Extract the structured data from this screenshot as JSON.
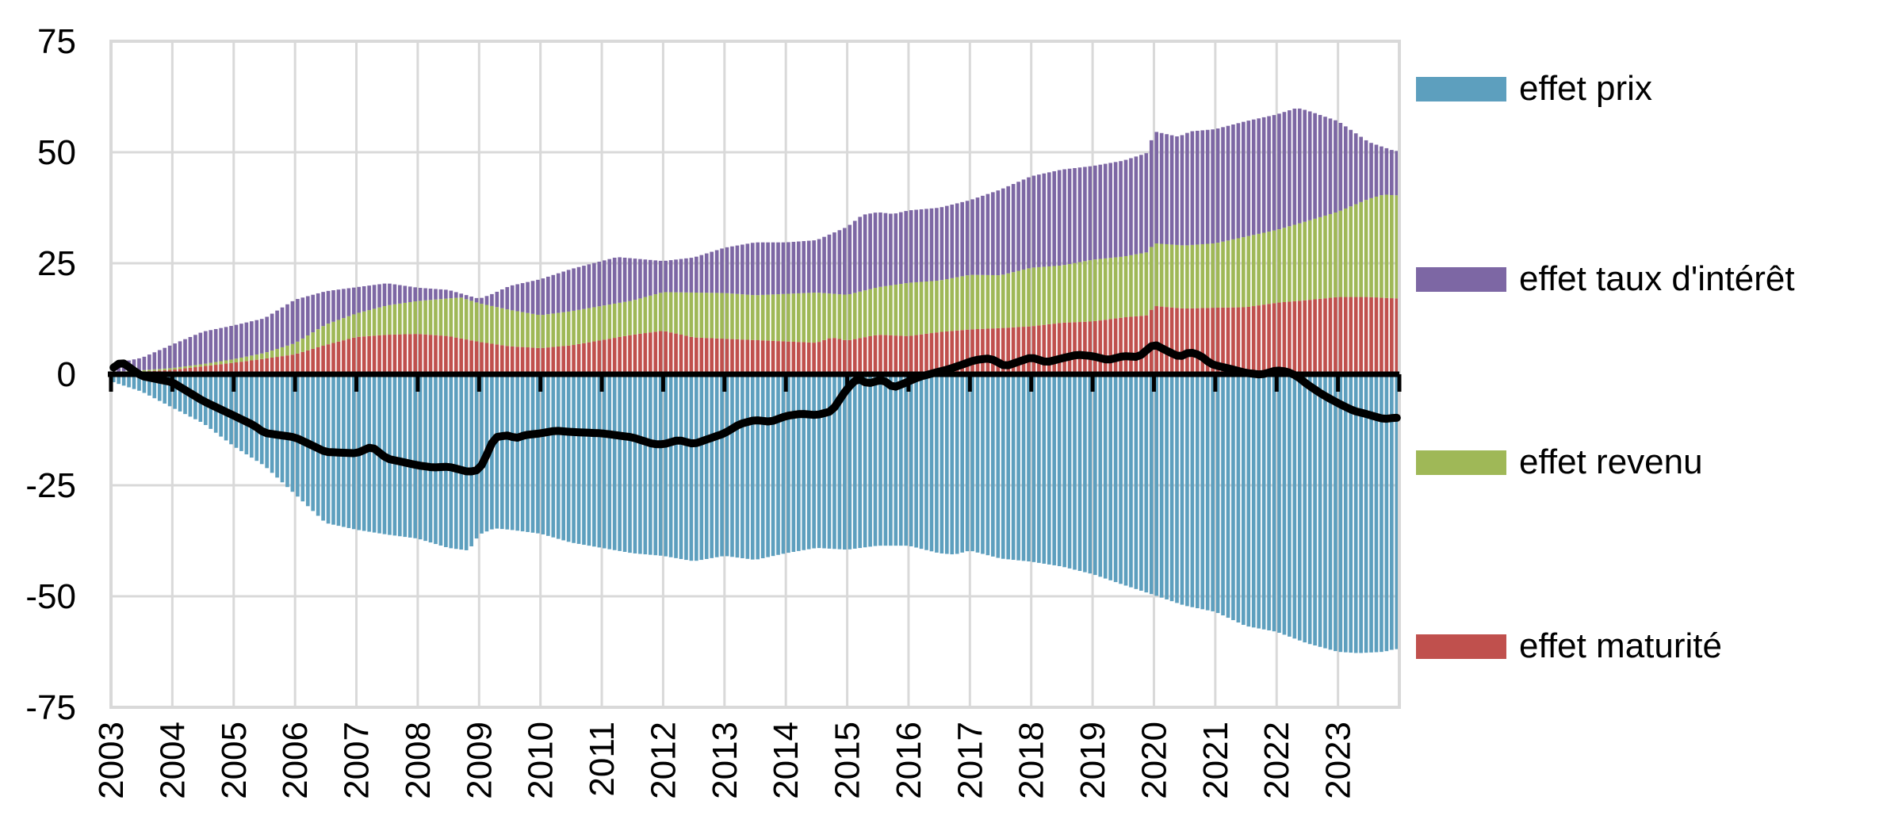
{
  "legend": [
    {
      "label": "effet prix",
      "color": "#5D9FBE",
      "series_key": "prix"
    },
    {
      "label": "effet taux d'intérêt",
      "color": "#7D67A4",
      "series_key": "taux"
    },
    {
      "label": "effet revenu",
      "color": "#9FB857",
      "series_key": "revenu"
    },
    {
      "label": "effet maturité",
      "color": "#C0504D",
      "series_key": "maturite"
    }
  ],
  "y_axis": {
    "ticks": [
      75,
      50,
      25,
      0,
      -25,
      -50,
      -75
    ],
    "min": -75,
    "max": 75
  },
  "x_axis": {
    "years": [
      2003,
      2004,
      2005,
      2006,
      2007,
      2008,
      2009,
      2010,
      2011,
      2012,
      2013,
      2014,
      2015,
      2016,
      2017,
      2018,
      2019,
      2020,
      2021,
      2022,
      2023
    ]
  },
  "style": {
    "grid_color": "#D9D9D9",
    "axis_color": "#000000",
    "line_color": "#000000",
    "background": "#FFFFFF"
  },
  "chart_data": {
    "type": "bar",
    "subtype": "monthly stacked bars (positive stack: maturité, revenu, taux d'intérêt; negative: prix) with black net line",
    "x_range": [
      2003,
      2024
    ],
    "x_resolution": "monthly 2003-01 to 2023-12 (252 bars)",
    "ylim": [
      -75,
      75
    ],
    "note": "anchor points read from chart; values are cumulative stack tops for positive series, negative values for prix, net balance for total",
    "series": [
      {
        "key": "maturite",
        "name": "effet maturité",
        "color": "#C0504D",
        "role": "bar-positive-cumulative-top",
        "anchors": {
          "x": [
            2003.0,
            2003.5,
            2004.0,
            2004.5,
            2005.0,
            2005.5,
            2006.0,
            2006.5,
            2007.0,
            2007.5,
            2008.0,
            2008.5,
            2009.0,
            2009.5,
            2010.0,
            2010.5,
            2011.0,
            2011.5,
            2012.0,
            2012.5,
            2013.0,
            2013.5,
            2014.0,
            2014.5,
            2014.75,
            2015.0,
            2015.5,
            2016.0,
            2016.5,
            2017.0,
            2017.5,
            2018.0,
            2018.5,
            2019.0,
            2019.5,
            2019.9,
            2020.0,
            2020.5,
            2021.0,
            2021.5,
            2022.0,
            2022.5,
            2023.0,
            2023.5,
            2023.92
          ],
          "v": [
            0.3,
            0.6,
            1.0,
            1.8,
            2.6,
            3.5,
            4.5,
            6.6,
            8.4,
            8.9,
            9.1,
            8.6,
            7.3,
            6.3,
            5.9,
            6.5,
            7.7,
            8.9,
            9.8,
            8.3,
            8.0,
            7.7,
            7.4,
            7.1,
            8.3,
            7.6,
            8.9,
            8.6,
            9.5,
            10.1,
            10.4,
            10.8,
            11.6,
            11.9,
            12.8,
            13.3,
            15.4,
            14.8,
            15.0,
            15.1,
            16.1,
            16.7,
            17.4,
            17.4,
            17.1
          ]
        }
      },
      {
        "key": "revenu",
        "name": "effet revenu",
        "color": "#9FB857",
        "role": "bar-positive-cumulative-top",
        "anchors": {
          "x": [
            2003.0,
            2003.5,
            2004.0,
            2004.5,
            2005.0,
            2005.5,
            2006.0,
            2006.5,
            2007.0,
            2007.5,
            2008.0,
            2008.7,
            2009.0,
            2009.5,
            2010.0,
            2010.5,
            2011.0,
            2011.5,
            2012.0,
            2012.5,
            2013.0,
            2013.5,
            2014.0,
            2014.5,
            2015.0,
            2015.5,
            2016.0,
            2016.5,
            2017.0,
            2017.5,
            2018.0,
            2018.5,
            2019.0,
            2019.5,
            2019.9,
            2020.0,
            2020.5,
            2021.0,
            2021.5,
            2022.0,
            2022.5,
            2023.0,
            2023.5,
            2023.75,
            2023.92
          ],
          "v": [
            0.5,
            0.9,
            1.4,
            2.3,
            3.4,
            4.8,
            7.0,
            11.2,
            13.7,
            15.5,
            16.5,
            17.3,
            16.0,
            14.5,
            13.3,
            14.2,
            15.4,
            16.6,
            18.5,
            18.4,
            18.3,
            17.8,
            18.1,
            18.4,
            17.9,
            19.6,
            20.6,
            21.1,
            22.4,
            22.3,
            24.0,
            24.5,
            25.8,
            26.5,
            27.5,
            29.5,
            29.0,
            29.5,
            31.0,
            32.5,
            34.5,
            36.6,
            39.5,
            40.5,
            40.3
          ]
        }
      },
      {
        "key": "taux",
        "name": "effet taux d'intérêt",
        "color": "#7D67A4",
        "role": "bar-positive-cumulative-top",
        "anchors": {
          "x": [
            2003.0,
            2003.5,
            2004.0,
            2004.5,
            2005.0,
            2005.5,
            2006.0,
            2006.5,
            2007.0,
            2007.5,
            2008.0,
            2008.5,
            2009.0,
            2009.2,
            2009.5,
            2010.0,
            2010.5,
            2011.0,
            2011.25,
            2011.5,
            2012.0,
            2012.5,
            2013.0,
            2013.5,
            2014.0,
            2014.5,
            2015.0,
            2015.25,
            2015.5,
            2015.75,
            2016.0,
            2016.5,
            2017.0,
            2017.5,
            2018.0,
            2018.5,
            2019.0,
            2019.5,
            2019.9,
            2020.0,
            2020.4,
            2020.6,
            2021.0,
            2021.5,
            2022.0,
            2022.33,
            2022.5,
            2023.0,
            2023.5,
            2023.92
          ],
          "v": [
            2.3,
            3.7,
            6.7,
            9.6,
            11.0,
            12.6,
            16.8,
            18.7,
            19.6,
            20.5,
            19.5,
            19.0,
            17.0,
            18.0,
            19.9,
            21.4,
            23.7,
            25.5,
            26.4,
            26.1,
            25.5,
            26.3,
            28.5,
            29.7,
            29.7,
            30.2,
            33.2,
            35.9,
            36.5,
            36.1,
            36.9,
            37.5,
            39.2,
            41.6,
            44.6,
            46.1,
            46.9,
            48.1,
            49.9,
            54.7,
            53.5,
            54.7,
            55.2,
            57.0,
            58.5,
            60.0,
            59.4,
            57.0,
            52.3,
            50.3
          ]
        }
      },
      {
        "key": "prix",
        "name": "effet prix",
        "color": "#5D9FBE",
        "role": "bar-negative",
        "anchors": {
          "x": [
            2003.0,
            2003.5,
            2004.0,
            2004.5,
            2005.0,
            2005.5,
            2006.0,
            2006.5,
            2007.0,
            2007.5,
            2008.0,
            2008.5,
            2008.83,
            2009.0,
            2009.25,
            2009.5,
            2010.0,
            2010.5,
            2011.0,
            2011.5,
            2012.0,
            2012.5,
            2013.0,
            2013.5,
            2014.0,
            2014.5,
            2015.0,
            2015.5,
            2016.0,
            2016.5,
            2016.75,
            2017.0,
            2017.5,
            2018.0,
            2018.5,
            2019.0,
            2019.5,
            2020.0,
            2020.5,
            2021.0,
            2021.5,
            2022.0,
            2022.5,
            2023.0,
            2023.33,
            2023.75,
            2023.92
          ],
          "v": [
            -1.6,
            -3.9,
            -7.5,
            -11.0,
            -16.2,
            -20.6,
            -27.0,
            -33.5,
            -35.0,
            -36.1,
            -37.0,
            -39.1,
            -39.7,
            -36.1,
            -34.7,
            -35.0,
            -35.9,
            -37.9,
            -39.1,
            -40.3,
            -40.9,
            -42.1,
            -40.9,
            -41.8,
            -40.3,
            -39.1,
            -39.5,
            -38.6,
            -38.6,
            -40.3,
            -40.6,
            -39.7,
            -41.5,
            -42.2,
            -43.3,
            -45.0,
            -47.4,
            -49.7,
            -52.1,
            -53.5,
            -56.7,
            -58.0,
            -60.6,
            -62.5,
            -62.8,
            -62.5,
            -61.9
          ]
        }
      },
      {
        "key": "total",
        "name": "solde net (ligne noire)",
        "color": "#000000",
        "role": "line",
        "anchors": {
          "x": [
            2003.0,
            2003.17,
            2003.5,
            2004.0,
            2004.25,
            2004.5,
            2005.0,
            2005.33,
            2005.5,
            2006.0,
            2006.5,
            2007.0,
            2007.25,
            2007.5,
            2008.0,
            2008.25,
            2008.5,
            2008.83,
            2009.0,
            2009.08,
            2009.25,
            2009.5,
            2009.58,
            2009.75,
            2010.0,
            2010.25,
            2010.5,
            2011.0,
            2011.5,
            2011.83,
            2012.0,
            2012.25,
            2012.5,
            2013.0,
            2013.25,
            2013.5,
            2013.75,
            2014.0,
            2014.25,
            2014.5,
            2014.75,
            2015.0,
            2015.17,
            2015.33,
            2015.58,
            2015.75,
            2015.92,
            2016.17,
            2016.42,
            2016.67,
            2016.92,
            2017.08,
            2017.33,
            2017.58,
            2017.83,
            2018.0,
            2018.25,
            2018.5,
            2018.75,
            2019.0,
            2019.25,
            2019.5,
            2019.75,
            2020.0,
            2020.25,
            2020.42,
            2020.58,
            2020.75,
            2020.92,
            2021.0,
            2021.25,
            2021.5,
            2021.75,
            2022.0,
            2022.17,
            2022.33,
            2022.5,
            2022.75,
            2023.0,
            2023.25,
            2023.5,
            2023.75,
            2023.92
          ],
          "v": [
            1.1,
            2.8,
            -0.4,
            -1.8,
            -3.9,
            -6.0,
            -9.3,
            -11.5,
            -13.2,
            -14.2,
            -17.5,
            -17.8,
            -16.3,
            -19.0,
            -20.5,
            -21.0,
            -20.8,
            -22.0,
            -21.5,
            -19.5,
            -14.2,
            -13.7,
            -14.5,
            -13.7,
            -13.3,
            -12.7,
            -13.0,
            -13.3,
            -14.2,
            -15.7,
            -15.8,
            -14.8,
            -15.7,
            -13.3,
            -11.2,
            -10.3,
            -10.7,
            -9.4,
            -8.9,
            -9.2,
            -8.3,
            -3.2,
            -0.9,
            -2.1,
            -1.2,
            -3.0,
            -2.1,
            -0.6,
            0.3,
            1.2,
            2.4,
            3.2,
            3.6,
            1.8,
            3.0,
            3.8,
            2.7,
            3.6,
            4.4,
            4.1,
            3.2,
            4.1,
            3.9,
            6.8,
            5.0,
            3.9,
            5.0,
            4.3,
            2.4,
            2.0,
            1.2,
            0.3,
            -0.1,
            0.9,
            0.6,
            -0.4,
            -2.3,
            -4.6,
            -6.5,
            -8.2,
            -9.1,
            -10.1,
            -9.8
          ]
        }
      }
    ]
  }
}
